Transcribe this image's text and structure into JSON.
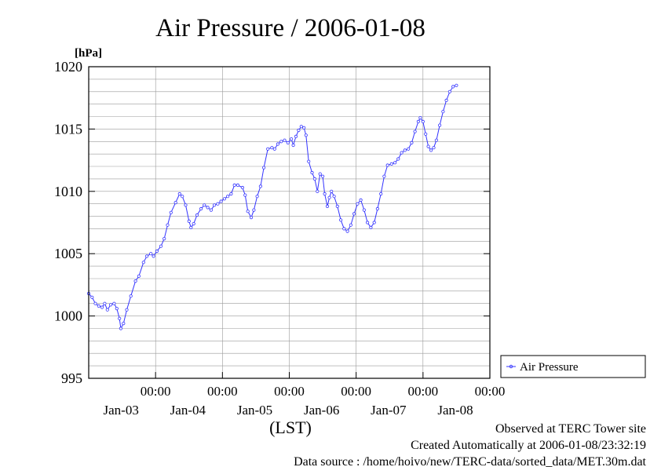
{
  "chart_data": {
    "type": "line",
    "title": "Air Pressure / 2006-01-08",
    "ylabel": "[hPa]",
    "xlabel": "(LST)",
    "ylim": [
      995,
      1020
    ],
    "yticks": [
      995,
      1000,
      1005,
      1010,
      1015,
      1020
    ],
    "xlim": [
      0,
      6
    ],
    "x_unit": "days since 2006-01-02 12:00",
    "xticks": [
      {
        "x": 1,
        "time": "00:00",
        "date": "Jan-03"
      },
      {
        "x": 2,
        "time": "00:00",
        "date": "Jan-04"
      },
      {
        "x": 3,
        "time": "00:00",
        "date": "Jan-05"
      },
      {
        "x": 4,
        "time": "00:00",
        "date": "Jan-06"
      },
      {
        "x": 5,
        "time": "00:00",
        "date": "Jan-07"
      },
      {
        "x": 6,
        "time": "00:00",
        "date": "Jan-08"
      }
    ],
    "grid": true,
    "legend_position": "right",
    "series": [
      {
        "name": "Air Pressure",
        "color": "#3333ff",
        "points": [
          [
            0.0,
            1001.8
          ],
          [
            0.05,
            1001.5
          ],
          [
            0.1,
            1001.0
          ],
          [
            0.15,
            1000.8
          ],
          [
            0.2,
            1000.7
          ],
          [
            0.24,
            1001.0
          ],
          [
            0.28,
            1000.5
          ],
          [
            0.33,
            1000.9
          ],
          [
            0.38,
            1001.0
          ],
          [
            0.42,
            1000.6
          ],
          [
            0.46,
            999.8
          ],
          [
            0.48,
            999.0
          ],
          [
            0.52,
            999.4
          ],
          [
            0.57,
            1000.5
          ],
          [
            0.63,
            1001.6
          ],
          [
            0.7,
            1002.8
          ],
          [
            0.75,
            1003.2
          ],
          [
            0.82,
            1004.3
          ],
          [
            0.87,
            1004.8
          ],
          [
            0.93,
            1005.0
          ],
          [
            0.97,
            1004.8
          ],
          [
            1.02,
            1005.2
          ],
          [
            1.08,
            1005.6
          ],
          [
            1.13,
            1006.2
          ],
          [
            1.18,
            1007.3
          ],
          [
            1.23,
            1008.3
          ],
          [
            1.3,
            1009.1
          ],
          [
            1.36,
            1009.8
          ],
          [
            1.4,
            1009.6
          ],
          [
            1.45,
            1008.9
          ],
          [
            1.5,
            1007.6
          ],
          [
            1.53,
            1007.1
          ],
          [
            1.57,
            1007.4
          ],
          [
            1.62,
            1008.1
          ],
          [
            1.68,
            1008.6
          ],
          [
            1.73,
            1008.9
          ],
          [
            1.78,
            1008.7
          ],
          [
            1.83,
            1008.5
          ],
          [
            1.88,
            1008.9
          ],
          [
            1.93,
            1009.0
          ],
          [
            1.98,
            1009.2
          ],
          [
            2.03,
            1009.4
          ],
          [
            2.08,
            1009.6
          ],
          [
            2.13,
            1009.8
          ],
          [
            2.18,
            1010.5
          ],
          [
            2.23,
            1010.5
          ],
          [
            2.3,
            1010.3
          ],
          [
            2.34,
            1009.7
          ],
          [
            2.38,
            1008.4
          ],
          [
            2.43,
            1007.9
          ],
          [
            2.47,
            1008.5
          ],
          [
            2.52,
            1009.6
          ],
          [
            2.57,
            1010.4
          ],
          [
            2.62,
            1011.9
          ],
          [
            2.68,
            1013.4
          ],
          [
            2.74,
            1013.5
          ],
          [
            2.78,
            1013.4
          ],
          [
            2.83,
            1013.8
          ],
          [
            2.88,
            1014.0
          ],
          [
            2.93,
            1014.1
          ],
          [
            2.98,
            1013.9
          ],
          [
            3.03,
            1014.2
          ],
          [
            3.06,
            1013.7
          ],
          [
            3.1,
            1014.4
          ],
          [
            3.14,
            1014.9
          ],
          [
            3.18,
            1015.2
          ],
          [
            3.22,
            1015.1
          ],
          [
            3.25,
            1014.5
          ],
          [
            3.29,
            1012.4
          ],
          [
            3.34,
            1011.5
          ],
          [
            3.38,
            1011.0
          ],
          [
            3.42,
            1010.0
          ],
          [
            3.46,
            1011.4
          ],
          [
            3.5,
            1011.2
          ],
          [
            3.53,
            1009.8
          ],
          [
            3.57,
            1008.8
          ],
          [
            3.6,
            1009.5
          ],
          [
            3.63,
            1010.0
          ],
          [
            3.67,
            1009.6
          ],
          [
            3.72,
            1008.8
          ],
          [
            3.77,
            1007.7
          ],
          [
            3.82,
            1007.0
          ],
          [
            3.87,
            1006.8
          ],
          [
            3.92,
            1007.3
          ],
          [
            3.97,
            1008.2
          ],
          [
            4.02,
            1009.0
          ],
          [
            4.07,
            1009.3
          ],
          [
            4.12,
            1008.5
          ],
          [
            4.17,
            1007.5
          ],
          [
            4.22,
            1007.1
          ],
          [
            4.27,
            1007.5
          ],
          [
            4.32,
            1008.6
          ],
          [
            4.37,
            1009.8
          ],
          [
            4.42,
            1011.2
          ],
          [
            4.47,
            1012.1
          ],
          [
            4.53,
            1012.2
          ],
          [
            4.58,
            1012.3
          ],
          [
            4.63,
            1012.6
          ],
          [
            4.68,
            1013.1
          ],
          [
            4.73,
            1013.3
          ],
          [
            4.78,
            1013.4
          ],
          [
            4.83,
            1013.9
          ],
          [
            4.88,
            1014.8
          ],
          [
            4.93,
            1015.6
          ],
          [
            4.96,
            1015.9
          ],
          [
            5.0,
            1015.6
          ],
          [
            5.04,
            1014.6
          ],
          [
            5.08,
            1013.6
          ],
          [
            5.12,
            1013.3
          ],
          [
            5.16,
            1013.5
          ],
          [
            5.2,
            1014.1
          ],
          [
            5.25,
            1015.3
          ],
          [
            5.3,
            1016.4
          ],
          [
            5.35,
            1017.3
          ],
          [
            5.4,
            1018.0
          ],
          [
            5.45,
            1018.4
          ],
          [
            5.5,
            1018.5
          ]
        ]
      }
    ]
  },
  "footer": {
    "line1": "Observed at TERC Tower site",
    "line2": "Created Automatically at 2006-01-08/23:32:19",
    "line3": "Data source : /home/hoivo/new/TERC-data/sorted_data/MET.30m.dat"
  }
}
